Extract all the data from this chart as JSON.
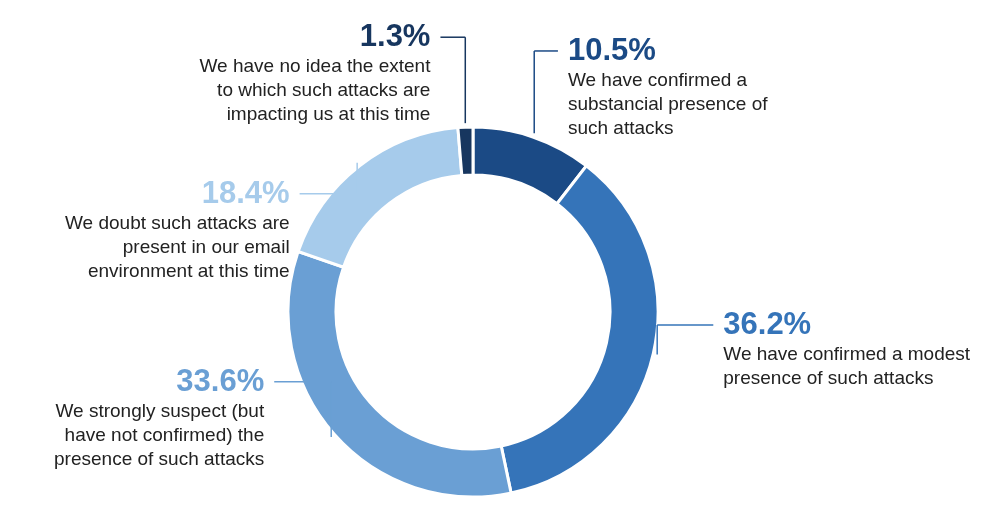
{
  "chart_data": {
    "type": "donut",
    "categories": [
      "We have confirmed a substancial presence of such attacks",
      "We have confirmed a modest presence of such attacks",
      "We strongly suspect (but have not confirmed) the presence of  such attacks",
      "We doubt such attacks are present in our email environment at this time",
      "We have no idea the extent to which such attacks are impacting us at this time"
    ],
    "values": [
      10.5,
      36.2,
      33.6,
      18.4,
      1.3
    ],
    "value_labels": [
      "10.5%",
      "36.2%",
      "33.6%",
      "18.4%",
      "1.3%"
    ],
    "colors": [
      "#1b4a85",
      "#3574b9",
      "#6a9fd4",
      "#a6cbeb",
      "#17365f"
    ]
  }
}
